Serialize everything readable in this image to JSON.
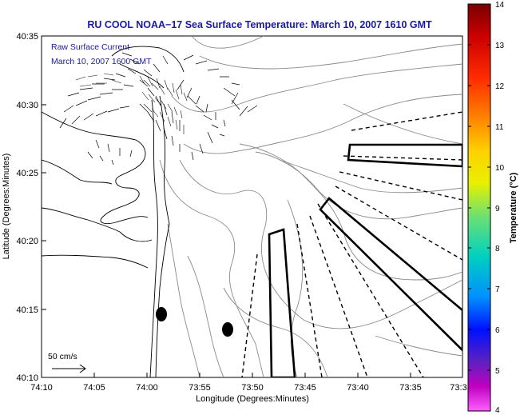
{
  "title": "RU COOL  NOAA−17  Sea Surface Temperature:  March 10, 2007 1610 GMT",
  "overlay": {
    "line1": "Raw Surface Current",
    "line2": "March 10, 2007 1600 GMT"
  },
  "axes": {
    "xlabel": "Longitude (Degrees:Minutes)",
    "ylabel": "Latitude (Degrees:Minutes)",
    "xticks": [
      "74:10",
      "74:05",
      "74:00",
      "73:55",
      "73:50",
      "73:45",
      "73:40",
      "73:35",
      "73:3"
    ],
    "yticks": [
      "40:35",
      "40:30",
      "40:25",
      "40:20",
      "40:15",
      "40:10"
    ]
  },
  "scale_label": "50 cm/s",
  "colorbar": {
    "label": "Temperature (°C)",
    "ticks": [
      "14",
      "13",
      "12",
      "11",
      "10",
      "9",
      "8",
      "7",
      "6",
      "5",
      "4"
    ],
    "min": 4,
    "max": 14
  }
}
